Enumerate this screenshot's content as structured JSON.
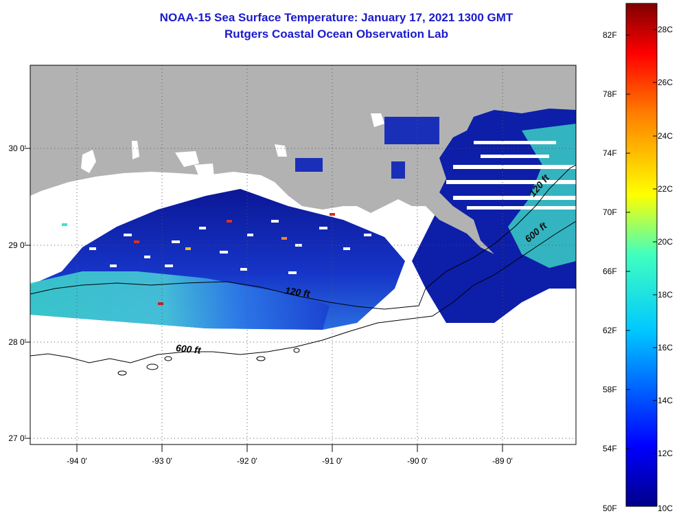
{
  "header": {
    "title_line1": "NOAA-15 Sea Surface Temperature:  January 17, 2021 1300 GMT",
    "title_line2": "Rutgers Coastal Ocean Observation Lab"
  },
  "map": {
    "region": "Northern Gulf of Mexico - Louisiana coast",
    "latitude_ticks": [
      "30 0'",
      "29 0'",
      "28 0'",
      "27 0'"
    ],
    "longitude_ticks": [
      "-94 0'",
      "-93 0'",
      "-92 0'",
      "-91 0'",
      "-90 0'",
      "-89 0'"
    ],
    "lat_range": [
      26.95,
      30.85
    ],
    "lon_range": [
      -94.55,
      -88.25
    ],
    "contour_labels": [
      "120 ft",
      "600 ft",
      "120 ft",
      "600 ft"
    ],
    "colors": {
      "land": "#b2b2b2",
      "no_data": "#ffffff",
      "ocean_cold": "#0a1e9c",
      "ocean_mid": "#2a7ae8",
      "ocean_warm": "#4fd6c0"
    }
  },
  "colorbar": {
    "fahrenheit_labels": [
      "82F",
      "78F",
      "74F",
      "70F",
      "66F",
      "62F",
      "58F",
      "54F",
      "50F"
    ],
    "celsius_labels": [
      "28C",
      "26C",
      "24C",
      "22C",
      "20C",
      "18C",
      "16C",
      "14C",
      "12C",
      "10C"
    ],
    "range_c": [
      10,
      29
    ]
  }
}
